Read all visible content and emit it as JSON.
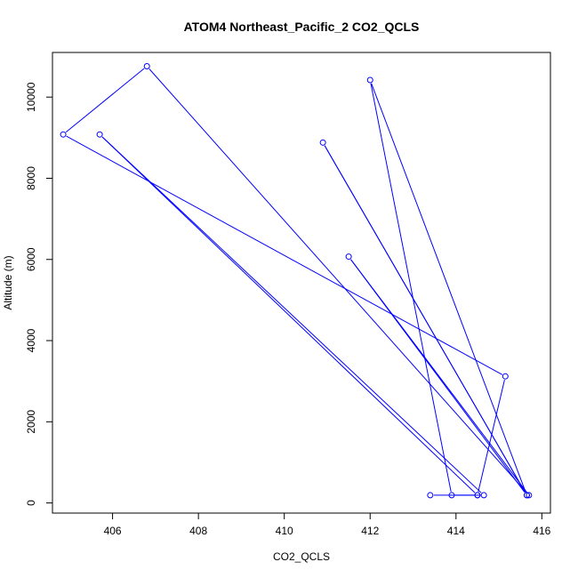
{
  "chart_data": {
    "type": "line",
    "title": "ATOM4 Northeast_Pacific_2 CO2_QCLS",
    "xlabel": "CO2_QCLS",
    "ylabel": "Altitude (m)",
    "xlim": [
      404.6,
      416.2
    ],
    "ylim": [
      -250,
      11100
    ],
    "xticks": [
      406,
      408,
      410,
      412,
      414,
      416
    ],
    "yticks": [
      0,
      2000,
      4000,
      6000,
      8000,
      10000
    ],
    "series": [
      {
        "color": "#0000ff",
        "marker": "open-circle",
        "points": [
          {
            "x": 413.4,
            "y": 190
          },
          {
            "x": 414.5,
            "y": 190
          },
          {
            "x": 415.15,
            "y": 3120
          },
          {
            "x": 404.85,
            "y": 9080
          },
          {
            "x": 406.8,
            "y": 10760
          },
          {
            "x": 415.7,
            "y": 190
          },
          {
            "x": 411.5,
            "y": 6070
          },
          {
            "x": 415.65,
            "y": 190
          },
          {
            "x": 410.9,
            "y": 8880
          },
          {
            "x": 415.65,
            "y": 190
          },
          {
            "x": 412.0,
            "y": 10420
          },
          {
            "x": 413.9,
            "y": 190
          },
          {
            "x": 414.65,
            "y": 190
          },
          {
            "x": 405.7,
            "y": 9080
          },
          {
            "x": 414.5,
            "y": 190
          }
        ]
      }
    ]
  }
}
